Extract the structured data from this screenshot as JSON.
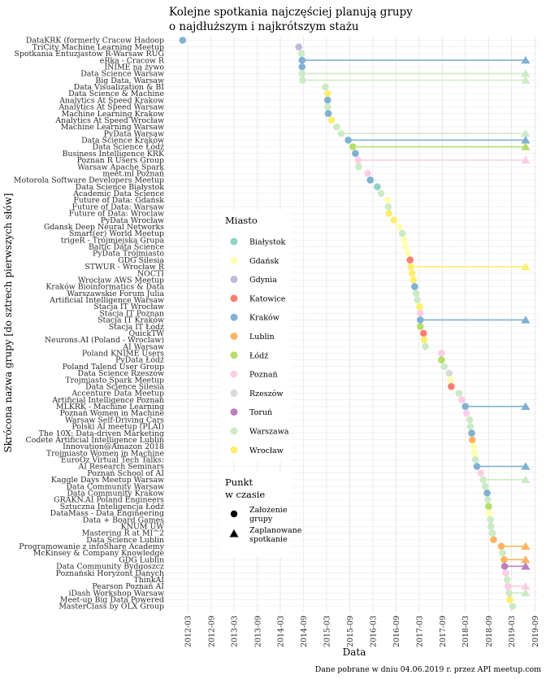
{
  "chart_data": {
    "type": "scatter",
    "title_lines": [
      "Kolejne spotkania najczęściej planują grupy",
      "o najdłuższym i najkrótszym stażu"
    ],
    "xlabel": "Data",
    "ylabel": "Skrócona nazwa grupy [do sztrech pierwszych słów]",
    "caption": "Dane pobrane w dniu 04.06.2019 r. przez API meetup.com",
    "x_ticks": [
      "2012-03",
      "2012-09",
      "2013-03",
      "2013-09",
      "2014-03",
      "2014-09",
      "2015-03",
      "2015-09",
      "2016-03",
      "2016-09",
      "2017-03",
      "2017-09",
      "2018-03",
      "2018-09",
      "2019-03",
      "2019-09"
    ],
    "xlim": [
      "2011-09-15",
      "2019-09-25"
    ],
    "colors": {
      "Białystok": "#8dd3c7",
      "Gdańsk": "#ffffb3",
      "Gdynia": "#bebada",
      "Katowice": "#fb8072",
      "Kraków": "#80b1d3",
      "Lublin": "#fdb462",
      "Łódź": "#b3de69",
      "Poznań": "#fccde5",
      "Rzeszów": "#d9d9d9",
      "Toruń": "#bc80bd",
      "Warszawa": "#ccebc5",
      "Wrocław": "#ffed6f"
    },
    "legend_city": {
      "title": "Miasto",
      "items": [
        "Białystok",
        "Gdańsk",
        "Gdynia",
        "Katowice",
        "Kraków",
        "Lublin",
        "Łódź",
        "Poznań",
        "Rzeszów",
        "Toruń",
        "Warszawa",
        "Wrocław"
      ]
    },
    "legend_point": {
      "title_lines": [
        "Punkt",
        "w czasie"
      ],
      "items": [
        {
          "lines": [
            "Założenie",
            "grupy"
          ]
        },
        {
          "lines": [
            "Zaplanowane",
            "spotkanie"
          ]
        }
      ]
    },
    "groups": [
      {
        "name": "DataKRK (formerly Cracow Hadoop",
        "city": "Kraków",
        "founded": "2012-01-20"
      },
      {
        "name": "TriCity Machine Learning Meetup",
        "city": "Gdynia",
        "founded": "2014-07-25"
      },
      {
        "name": "Spotkania Entuzjastów R-Warsaw RUG",
        "city": "Warszawa",
        "founded": "2014-08-15"
      },
      {
        "name": "eRka - Cracow R",
        "city": "Kraków",
        "founded": "2014-08-20",
        "planned": "2019-06-20"
      },
      {
        "name": "INIME na żywo",
        "city": "Kraków",
        "founded": "2014-08-20"
      },
      {
        "name": "Data Science Warsaw",
        "city": "Warszawa",
        "founded": "2014-08-20",
        "planned": "2019-06-20"
      },
      {
        "name": "Big Data, Warsaw",
        "city": "Warszawa",
        "founded": "2014-08-25",
        "planned": "2019-06-20"
      },
      {
        "name": "Data Visualization & BI",
        "city": "Warszawa",
        "founded": "2015-02-20"
      },
      {
        "name": "Data Science & Machine",
        "city": "Wrocław",
        "founded": "2015-03-10"
      },
      {
        "name": "Analytics At Speed Krakow",
        "city": "Kraków",
        "founded": "2015-03-10"
      },
      {
        "name": "Analytics At Speed Warsaw",
        "city": "Warszawa",
        "founded": "2015-03-10"
      },
      {
        "name": "Machine Learning Krakow",
        "city": "Kraków",
        "founded": "2015-03-15"
      },
      {
        "name": "Analytics At Speed Wrocław",
        "city": "Wrocław",
        "founded": "2015-04-10"
      },
      {
        "name": "Machine Learning Warsaw",
        "city": "Warszawa",
        "founded": "2015-05-20"
      },
      {
        "name": "PyData Warsaw",
        "city": "Warszawa",
        "founded": "2015-06-25",
        "planned": "2019-06-20"
      },
      {
        "name": "Data Science Kraków",
        "city": "Kraków",
        "founded": "2015-08-20",
        "planned": "2019-06-20"
      },
      {
        "name": "Data Science Łódź",
        "city": "Łódź",
        "founded": "2015-09-25",
        "planned": "2019-06-20"
      },
      {
        "name": "Business Intelligence KRK",
        "city": "Kraków",
        "founded": "2015-10-15"
      },
      {
        "name": "Poznan R Users Group",
        "city": "Poznań",
        "founded": "2015-11-05",
        "planned": "2019-06-20"
      },
      {
        "name": "Warsaw Apache Spark",
        "city": "Warszawa",
        "founded": "2015-11-10"
      },
      {
        "name": "meet.ml Poznań",
        "city": "Poznań",
        "founded": "2016-01-20"
      },
      {
        "name": "Motorola Software Developers Meetup",
        "city": "Kraków",
        "founded": "2016-02-10"
      },
      {
        "name": "Data Science Białystok",
        "city": "Białystok",
        "founded": "2016-04-05"
      },
      {
        "name": "Academic Data Science",
        "city": "Warszawa",
        "founded": "2016-05-05"
      },
      {
        "name": "Future of Data: Gdańsk",
        "city": "Gdańsk",
        "founded": "2016-06-25"
      },
      {
        "name": "Future of Data: Warsaw",
        "city": "Warszawa",
        "founded": "2016-07-01"
      },
      {
        "name": "Future of Data: Wroclaw",
        "city": "Wrocław",
        "founded": "2016-07-05"
      },
      {
        "name": "PyData Wrocław",
        "city": "Wrocław",
        "founded": "2016-08-15"
      },
      {
        "name": "Gdansk Deep Neural Networks",
        "city": "Gdańsk",
        "founded": "2016-09-25"
      },
      {
        "name": "Smart(er) World Meetup",
        "city": "Warszawa",
        "founded": "2016-10-20"
      },
      {
        "name": "trigeR - Trójmiejska Grupa",
        "city": "Gdańsk",
        "founded": "2016-11-05"
      },
      {
        "name": "Baltic Data Science",
        "city": "Gdańsk",
        "founded": "2016-11-15"
      },
      {
        "name": "PyData Trójmiasto",
        "city": "Gdańsk",
        "founded": "2016-12-05"
      },
      {
        "name": "GDG Silesia",
        "city": "Katowice",
        "founded": "2016-12-20"
      },
      {
        "name": "STWUR - Wrocław R",
        "city": "Wrocław",
        "founded": "2016-12-25",
        "planned": "2019-06-20"
      },
      {
        "name": "NOCTI",
        "city": "Wrocław",
        "founded": "2017-01-05"
      },
      {
        "name": "Wrocław AWS Meetup",
        "city": "Wrocław",
        "founded": "2017-01-15"
      },
      {
        "name": "Kraków Bioinformatics & Data",
        "city": "Kraków",
        "founded": "2017-01-25"
      },
      {
        "name": "Warszawskie Forum Julia",
        "city": "Warszawa",
        "founded": "2017-02-05"
      },
      {
        "name": "Artificial Intelligence Warsaw",
        "city": "Warszawa",
        "founded": "2017-02-15"
      },
      {
        "name": "Stacja IT Wrocław",
        "city": "Wrocław",
        "founded": "2017-03-05"
      },
      {
        "name": "Stacja IT Poznan",
        "city": "Poznań",
        "founded": "2017-03-10"
      },
      {
        "name": "Stacja IT Kraków",
        "city": "Kraków",
        "founded": "2017-03-10",
        "planned": "2019-06-20"
      },
      {
        "name": "Stacja IT Łódź",
        "city": "Łódź",
        "founded": "2017-03-10"
      },
      {
        "name": "QuickTW",
        "city": "Katowice",
        "founded": "2017-04-05"
      },
      {
        "name": "Neurons.AI (Poland - Wroclaw)",
        "city": "Wrocław",
        "founded": "2017-04-10"
      },
      {
        "name": "AI Warsaw",
        "city": "Warszawa",
        "founded": "2017-04-20"
      },
      {
        "name": "Poland KNIME Users",
        "city": "Poznań",
        "founded": "2017-08-25"
      },
      {
        "name": "PyData Łódź",
        "city": "Łódź",
        "founded": "2017-08-25"
      },
      {
        "name": "Poland Talend User Group",
        "city": "Warszawa",
        "founded": "2017-09-15"
      },
      {
        "name": "Data Science Rzeszów",
        "city": "Rzeszów",
        "founded": "2017-10-25"
      },
      {
        "name": "Trojmiasto Spark Meetup",
        "city": "Gdańsk",
        "founded": "2017-11-05"
      },
      {
        "name": "Data Science Silesia",
        "city": "Katowice",
        "founded": "2017-11-10"
      },
      {
        "name": "Accenture Data Meetup",
        "city": "Warszawa",
        "founded": "2018-01-10"
      },
      {
        "name": "Artificial Intelligence Poznań",
        "city": "Poznań",
        "founded": "2018-02-01"
      },
      {
        "name": "MLKRK - Machine Learning",
        "city": "Kraków",
        "founded": "2018-03-01",
        "planned": "2019-06-20"
      },
      {
        "name": "Poznań Women in Machine",
        "city": "Poznań",
        "founded": "2018-03-10"
      },
      {
        "name": "Warsaw Self-Driving Cars",
        "city": "Warszawa",
        "founded": "2018-04-05"
      },
      {
        "name": "Polski AI meetup (PLAI)",
        "city": "Warszawa",
        "founded": "2018-04-10"
      },
      {
        "name": "The 10X: Data-driven Marketing",
        "city": "Kraków",
        "founded": "2018-04-20"
      },
      {
        "name": "Codete Artificial Intelligence Lublin",
        "city": "Lublin",
        "founded": "2018-04-25"
      },
      {
        "name": "Innovation@Amazon 2018",
        "city": "Gdańsk",
        "founded": "2018-05-05"
      },
      {
        "name": "Trojmiasto Women in Machine",
        "city": "Gdańsk",
        "founded": "2018-05-15"
      },
      {
        "name": "EuroOz Virtual Tech Talks:",
        "city": "Warszawa",
        "founded": "2018-05-20"
      },
      {
        "name": "AI Research Seminars",
        "city": "Kraków",
        "founded": "2018-06-01",
        "planned": "2019-06-20"
      },
      {
        "name": "Poznań School of AI",
        "city": "Poznań",
        "founded": "2018-07-01"
      },
      {
        "name": "Kaggle Days Meetup Warsaw",
        "city": "Warszawa",
        "founded": "2018-07-20",
        "planned": "2019-06-20"
      },
      {
        "name": "Data Community Warsaw",
        "city": "Warszawa",
        "founded": "2018-08-05"
      },
      {
        "name": "Data Community Krakow",
        "city": "Kraków",
        "founded": "2018-08-20"
      },
      {
        "name": "GRAKN.AI Poland Engineers",
        "city": "Warszawa",
        "founded": "2018-08-25"
      },
      {
        "name": "Sztuczna Inteligencja Łódź",
        "city": "Łódź",
        "founded": "2018-09-01"
      },
      {
        "name": "DataMass - Data Engineering",
        "city": "Gdańsk",
        "founded": "2018-09-05"
      },
      {
        "name": "Data + Board Games",
        "city": "Warszawa",
        "founded": "2018-09-15"
      },
      {
        "name": "KNUM UW",
        "city": "Warszawa",
        "founded": "2018-09-20"
      },
      {
        "name": "Mastering R at MI^2",
        "city": "Warszawa",
        "founded": "2018-10-01"
      },
      {
        "name": "Data Science Lublin",
        "city": "Lublin",
        "founded": "2018-10-10"
      },
      {
        "name": "Programowanie z infoShare Academy",
        "city": "Lublin",
        "founded": "2018-12-10",
        "planned": "2019-06-20"
      },
      {
        "name": "McKinsey & Company Knowledge",
        "city": "Warszawa",
        "founded": "2018-12-20"
      },
      {
        "name": "GDG Lublin",
        "city": "Lublin",
        "founded": "2019-01-01",
        "planned": "2019-06-20"
      },
      {
        "name": "Data Community Bydgoszcz",
        "city": "Toruń",
        "founded": "2019-01-05",
        "planned": "2019-06-20"
      },
      {
        "name": "Poznański Horyzont Danych",
        "city": "Poznań",
        "founded": "2019-01-15"
      },
      {
        "name": "ThinkAI",
        "city": "Warszawa",
        "founded": "2019-01-25"
      },
      {
        "name": "Pearson Poznań AI",
        "city": "Poznań",
        "founded": "2019-02-01",
        "planned": "2019-06-20"
      },
      {
        "name": "iDash Workshop Warsaw",
        "city": "Warszawa",
        "founded": "2019-02-10",
        "planned": "2019-06-20"
      },
      {
        "name": "Meet-up Big Data Powered",
        "city": "Wrocław",
        "founded": "2019-02-15"
      },
      {
        "name": "MasterClass by OLX Group",
        "city": "Warszawa",
        "founded": "2019-03-10"
      }
    ]
  }
}
